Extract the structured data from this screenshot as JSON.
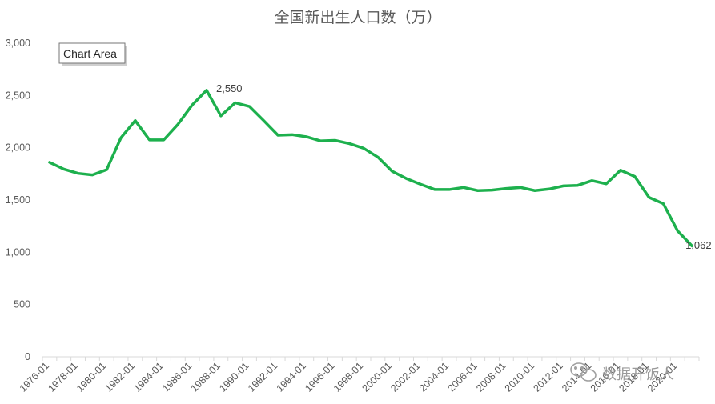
{
  "tooltip": "Chart Area",
  "watermark": "数据开饭人",
  "chart_data": {
    "type": "line",
    "title": "全国新出生人口数（万）",
    "xlabel": "",
    "ylabel": "",
    "ylim": [
      0,
      3000
    ],
    "yticks": [
      0,
      500,
      1000,
      1500,
      2000,
      2500,
      3000
    ],
    "ytick_labels": [
      "0",
      "500",
      "1,000",
      "1,500",
      "2,000",
      "2,500",
      "3,000"
    ],
    "xtick_labels": [
      "1976-01",
      "1978-01",
      "1980-01",
      "1982-01",
      "1984-01",
      "1986-01",
      "1988-01",
      "1990-01",
      "1992-01",
      "1994-01",
      "1996-01",
      "1998-01",
      "2000-01",
      "2002-01",
      "2004-01",
      "2006-01",
      "2008-01",
      "2010-01",
      "2012-01",
      "2014-01",
      "2016-01",
      "2018-01",
      "2020-01"
    ],
    "grid": false,
    "legend": "none",
    "line_color": "#1db04d",
    "x": [
      "1976-01",
      "1977-01",
      "1978-01",
      "1979-01",
      "1980-01",
      "1981-01",
      "1982-01",
      "1983-01",
      "1984-01",
      "1985-01",
      "1986-01",
      "1987-01",
      "1988-01",
      "1989-01",
      "1990-01",
      "1991-01",
      "1992-01",
      "1993-01",
      "1994-01",
      "1995-01",
      "1996-01",
      "1997-01",
      "1998-01",
      "1999-01",
      "2000-01",
      "2001-01",
      "2002-01",
      "2003-01",
      "2004-01",
      "2005-01",
      "2006-01",
      "2007-01",
      "2008-01",
      "2009-01",
      "2010-01",
      "2011-01",
      "2012-01",
      "2013-01",
      "2014-01",
      "2015-01",
      "2016-01",
      "2017-01",
      "2018-01",
      "2019-01",
      "2020-01",
      "2021-01"
    ],
    "values": [
      1860,
      1795,
      1755,
      1740,
      1790,
      2095,
      2260,
      2075,
      2075,
      2225,
      2410,
      2550,
      2305,
      2430,
      2395,
      2260,
      2120,
      2125,
      2105,
      2065,
      2070,
      2040,
      1995,
      1910,
      1775,
      1705,
      1650,
      1600,
      1600,
      1620,
      1590,
      1595,
      1610,
      1620,
      1590,
      1605,
      1635,
      1640,
      1685,
      1655,
      1785,
      1725,
      1525,
      1465,
      1205,
      1062
    ],
    "data_labels": [
      {
        "index": 11,
        "text": "2,550"
      },
      {
        "index": 45,
        "text": "1,062"
      }
    ]
  }
}
